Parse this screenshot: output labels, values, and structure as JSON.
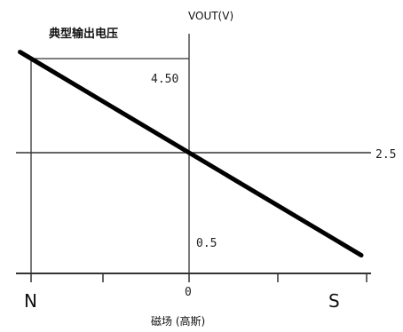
{
  "chart_data": {
    "type": "line",
    "title": "典型输出电压",
    "ylabel": "VOUT(V)",
    "xlabel": "磁场 (高斯)",
    "x_range": [
      -1,
      1
    ],
    "ylim": [
      0.5,
      4.5
    ],
    "x_ticks": [
      {
        "x": -1,
        "label": "N"
      },
      {
        "x": -0.5,
        "label": ""
      },
      {
        "x": 0,
        "label": "0"
      },
      {
        "x": 0.5,
        "label": ""
      },
      {
        "x": 1,
        "label": "S"
      }
    ],
    "y_ticks": [
      {
        "y": 4.5,
        "label": "4.50"
      },
      {
        "y": 2.5,
        "label": "2.5"
      },
      {
        "y": 0.5,
        "label": "0.5"
      }
    ],
    "series": [
      {
        "x": [
          -1,
          0,
          1
        ],
        "y": [
          4.5,
          2.5,
          0.5
        ]
      }
    ],
    "grid": false,
    "colors": {
      "line": "#000000",
      "axis": "#333333"
    }
  }
}
